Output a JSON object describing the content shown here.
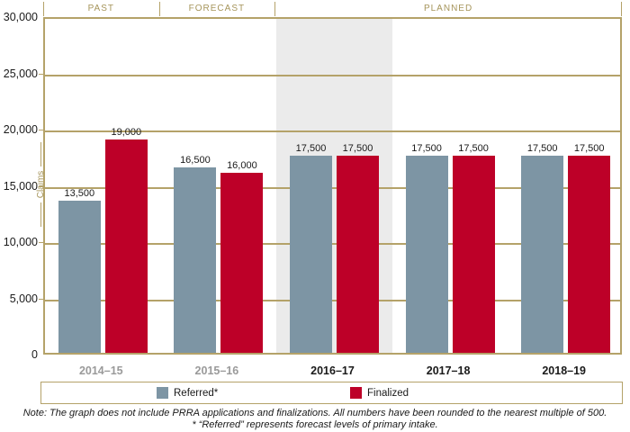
{
  "header": {
    "sections": [
      {
        "label": "PAST",
        "groups": 1
      },
      {
        "label": "FORECAST",
        "groups": 1
      },
      {
        "label": "PLANNED",
        "groups": 3
      }
    ]
  },
  "chart_data": {
    "type": "bar",
    "title": "",
    "categories": [
      "2014–15",
      "2015–16",
      "2016–17",
      "2017–18",
      "2018–19"
    ],
    "series": [
      {
        "name": "Referred*",
        "color": "#7D95A4",
        "values": [
          13500,
          16500,
          17500,
          17500,
          17500
        ]
      },
      {
        "name": "Finalized",
        "color": "#BD0028",
        "values": [
          19000,
          16000,
          17500,
          17500,
          17500
        ]
      }
    ],
    "bar_value_labels": [
      [
        "13,500",
        "19,000"
      ],
      [
        "16,500",
        "16,000"
      ],
      [
        "17,500",
        "17,500"
      ],
      [
        "17,500",
        "17,500"
      ],
      [
        "17,500",
        "17,500"
      ]
    ],
    "xlabel": "",
    "ylabel": "Claims",
    "ylim": [
      0,
      30000
    ],
    "ytick_step": 5000,
    "ytick_labels": [
      "0",
      "5,000",
      "10,000",
      "15,000",
      "20,000",
      "25,000",
      "30,000"
    ],
    "grid": true,
    "legend_position": "bottom",
    "highlighted_category": "2016–17",
    "muted_category_labels": [
      "2014–15",
      "2015–16"
    ]
  },
  "legend": {
    "items": [
      {
        "label": "Referred*",
        "color": "#7D95A4"
      },
      {
        "label": "Finalized",
        "color": "#BD0028"
      }
    ]
  },
  "notes": {
    "line1": "Note: The graph does not include PRRA applications and finalizations. All numbers have been rounded to the nearest multiple of 500.",
    "line2": "* “Referred” represents forecast levels of primary intake."
  },
  "colors": {
    "axis_gold": "#B4A269",
    "header_text": "#A6955B",
    "highlight_band": "#EBEBEB",
    "muted_year_label": "#9A9A9A",
    "year_label": "#1A1A1A"
  }
}
